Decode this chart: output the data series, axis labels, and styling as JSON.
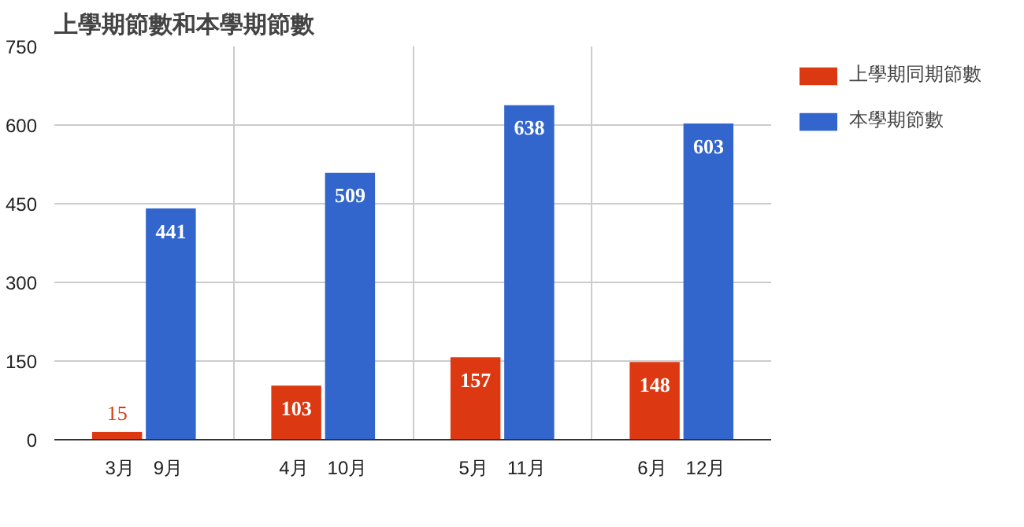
{
  "chart_data": {
    "type": "bar",
    "title": "上學期節數和本學期節數",
    "categories": [
      "3月　9月",
      "4月　10月",
      "5月　11月",
      "6月　12月"
    ],
    "series": [
      {
        "name": "上學期同期節數",
        "color": "#dc3912",
        "values": [
          15,
          103,
          157,
          148
        ]
      },
      {
        "name": "本學期節數",
        "color": "#3366cc",
        "values": [
          441,
          509,
          638,
          603
        ]
      }
    ],
    "ylim": [
      0,
      750
    ],
    "yticks": [
      0,
      150,
      300,
      450,
      600,
      750
    ],
    "grid": true,
    "legend": "right",
    "data_labels": true
  }
}
